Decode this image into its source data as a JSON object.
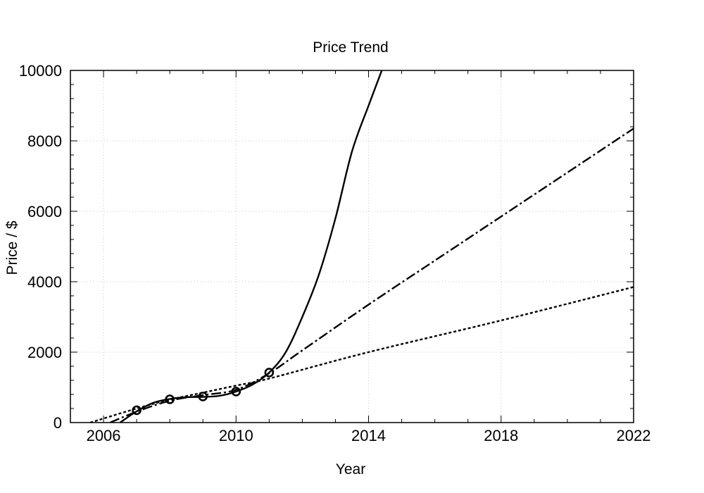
{
  "chart_data": {
    "type": "line",
    "title": "Price Trend",
    "xlabel": "Year",
    "ylabel": "Price / $",
    "xlim": [
      2005,
      2022
    ],
    "ylim": [
      0,
      10000
    ],
    "x_ticks": [
      2006,
      2010,
      2014,
      2018,
      2022
    ],
    "y_ticks": [
      0,
      2000,
      4000,
      6000,
      8000,
      10000
    ],
    "grid": true,
    "legend": "none",
    "observed": {
      "x": [
        2007,
        2008,
        2009,
        2010,
        2011
      ],
      "y": [
        350,
        660,
        740,
        880,
        1420
      ]
    },
    "series": [
      {
        "style": "solid",
        "x": [
          2006.5,
          2007,
          2007.5,
          2008,
          2008.5,
          2009,
          2009.5,
          2010,
          2010.5,
          2011,
          2011.5,
          2012,
          2012.5,
          2013,
          2013.5,
          2014,
          2014.4
        ],
        "y": [
          0,
          320,
          560,
          670,
          720,
          730,
          760,
          880,
          1080,
          1420,
          2000,
          3000,
          4200,
          5800,
          7700,
          9000,
          10000
        ]
      },
      {
        "style": "dash-dot",
        "x": [
          2006.2,
          2007,
          2008,
          2009,
          2010,
          2011,
          2012,
          2014,
          2016,
          2018,
          2020,
          2022
        ],
        "y": [
          0,
          310,
          620,
          780,
          930,
          1400,
          2050,
          3350,
          4600,
          5850,
          7100,
          8350
        ]
      },
      {
        "style": "dotted",
        "x": [
          2005.6,
          2007,
          2008,
          2009,
          2010,
          2011,
          2014,
          2018,
          2022
        ],
        "y": [
          0,
          400,
          650,
          850,
          1050,
          1250,
          2000,
          2900,
          3850
        ]
      }
    ]
  }
}
